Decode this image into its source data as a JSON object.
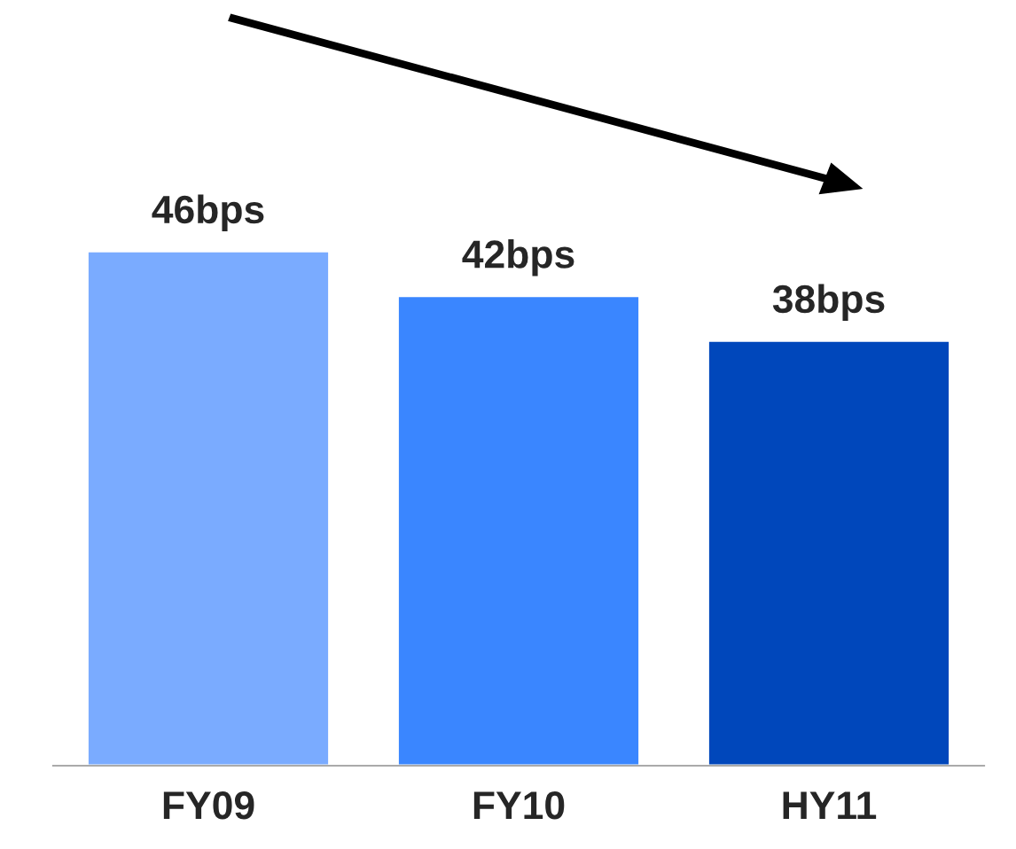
{
  "chart_data": {
    "type": "bar",
    "categories": [
      "FY09",
      "FY10",
      "HY11"
    ],
    "values": [
      46,
      42,
      38
    ],
    "value_labels": [
      "46bps",
      "42bps",
      "38bps"
    ],
    "colors": [
      "#7aabff",
      "#3a86ff",
      "#0047bb"
    ],
    "tick_labels": "x",
    "grid": false,
    "legend": false
  }
}
